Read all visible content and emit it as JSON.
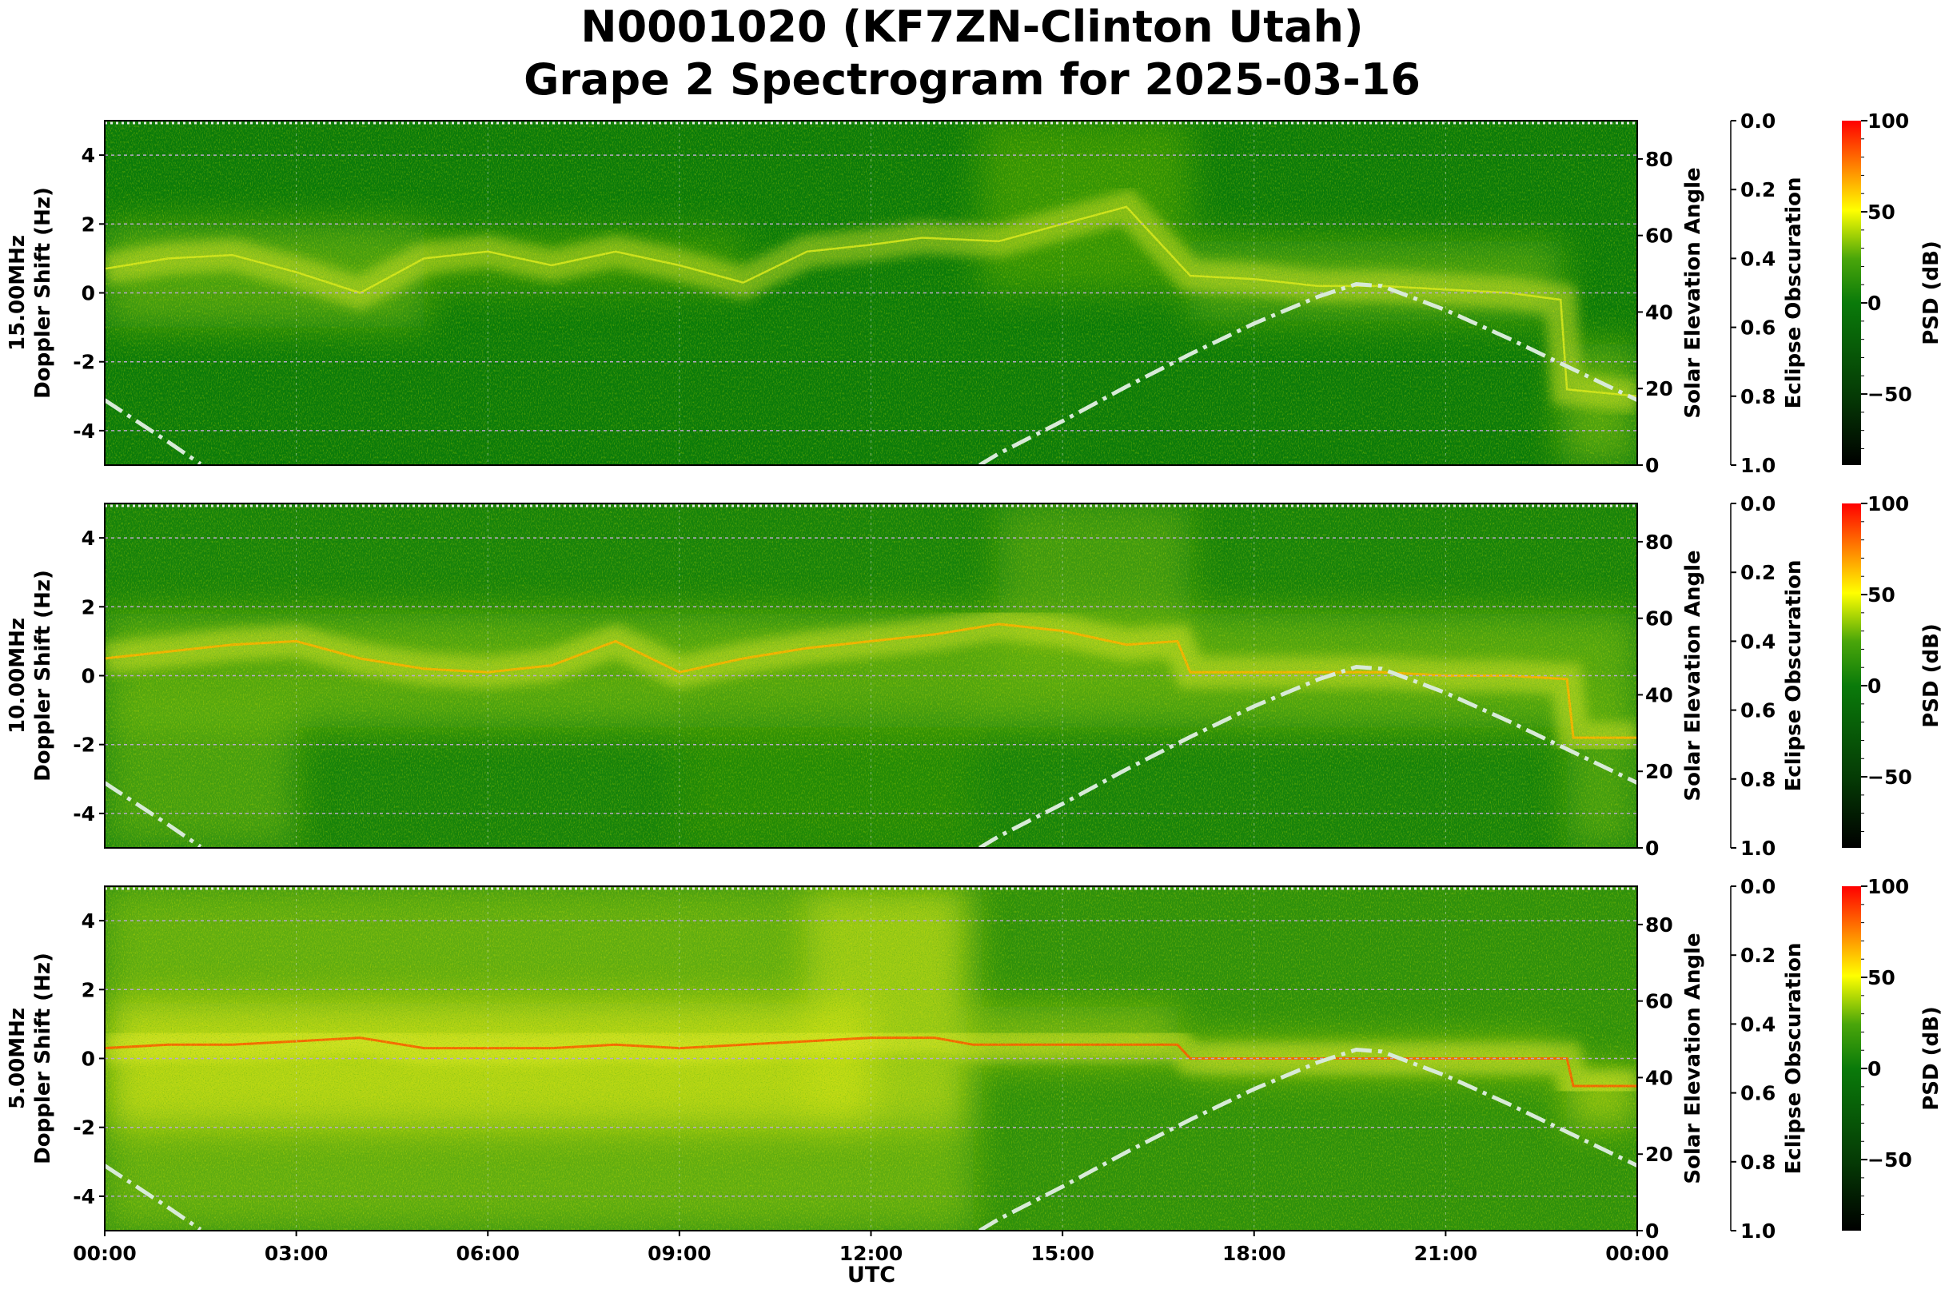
{
  "title_line1": "N0001020 (KF7ZN-Clinton Utah)",
  "title_line2": "Grape 2 Spectrogram for 2025-03-16",
  "chart_data": {
    "type": "heatmap",
    "xlabel": "UTC",
    "x_ticks": [
      "00:00",
      "03:00",
      "06:00",
      "09:00",
      "12:00",
      "15:00",
      "18:00",
      "21:00",
      "00:00"
    ],
    "x_range_hours": [
      0,
      24
    ],
    "grid": true,
    "panels": [
      {
        "frequency_label": "15.00MHz",
        "ylabel": "Doppler Shift (Hz)",
        "ylim": [
          -5,
          5
        ],
        "y_ticks": [
          "-4",
          "-2",
          "0",
          "2",
          "4"
        ],
        "dominant_doppler_hz": [
          [
            0,
            0.7
          ],
          [
            1,
            1.0
          ],
          [
            2,
            1.1
          ],
          [
            3,
            0.6
          ],
          [
            4,
            0.0
          ],
          [
            5,
            1.0
          ],
          [
            6,
            1.2
          ],
          [
            7,
            0.8
          ],
          [
            8,
            1.2
          ],
          [
            9,
            0.8
          ],
          [
            10,
            0.3
          ],
          [
            11,
            1.2
          ],
          [
            12,
            1.4
          ],
          [
            12.8,
            1.6
          ],
          [
            14,
            1.5
          ],
          [
            15,
            2.0
          ],
          [
            16,
            2.5
          ],
          [
            17,
            0.5
          ],
          [
            18,
            0.4
          ],
          [
            19,
            0.2
          ],
          [
            20,
            0.2
          ],
          [
            21,
            0.1
          ],
          [
            22,
            0.0
          ],
          [
            22.8,
            -0.2
          ],
          [
            22.9,
            -2.8
          ],
          [
            24,
            -3.0
          ]
        ]
      },
      {
        "frequency_label": "10.00MHz",
        "ylabel": "Doppler Shift (Hz)",
        "ylim": [
          -5,
          5
        ],
        "y_ticks": [
          "-4",
          "-2",
          "0",
          "2",
          "4"
        ],
        "dominant_doppler_hz": [
          [
            0,
            0.5
          ],
          [
            1,
            0.7
          ],
          [
            2,
            0.9
          ],
          [
            3,
            1.0
          ],
          [
            4,
            0.5
          ],
          [
            5,
            0.2
          ],
          [
            6,
            0.1
          ],
          [
            7,
            0.3
          ],
          [
            8,
            1.0
          ],
          [
            9,
            0.1
          ],
          [
            10,
            0.5
          ],
          [
            11,
            0.8
          ],
          [
            12,
            1.0
          ],
          [
            13,
            1.2
          ],
          [
            14,
            1.5
          ],
          [
            15,
            1.3
          ],
          [
            16,
            0.9
          ],
          [
            16.8,
            1.0
          ],
          [
            17,
            0.1
          ],
          [
            18,
            0.1
          ],
          [
            19,
            0.1
          ],
          [
            20,
            0.1
          ],
          [
            21,
            0.0
          ],
          [
            22,
            0.0
          ],
          [
            22.9,
            -0.1
          ],
          [
            23,
            -1.8
          ],
          [
            24,
            -1.8
          ]
        ]
      },
      {
        "frequency_label": "5.00MHz",
        "ylabel": "Doppler Shift (Hz)",
        "ylim": [
          -5,
          5
        ],
        "y_ticks": [
          "-4",
          "-2",
          "0",
          "2",
          "4"
        ],
        "dominant_doppler_hz": [
          [
            0,
            0.3
          ],
          [
            1,
            0.4
          ],
          [
            2,
            0.4
          ],
          [
            3,
            0.5
          ],
          [
            4,
            0.6
          ],
          [
            5,
            0.3
          ],
          [
            6,
            0.3
          ],
          [
            7,
            0.3
          ],
          [
            8,
            0.4
          ],
          [
            9,
            0.3
          ],
          [
            10,
            0.4
          ],
          [
            11,
            0.5
          ],
          [
            12,
            0.6
          ],
          [
            13,
            0.6
          ],
          [
            13.6,
            0.4
          ],
          [
            15,
            0.4
          ],
          [
            16.8,
            0.4
          ],
          [
            17,
            0.0
          ],
          [
            20,
            0.0
          ],
          [
            22.9,
            0.0
          ],
          [
            23,
            -0.8
          ],
          [
            24,
            -0.8
          ]
        ]
      }
    ],
    "solar_elevation": {
      "ylabel": "Solar Elevation Angle",
      "ylim": [
        0,
        90
      ],
      "y_ticks": [
        "0",
        "20",
        "40",
        "60",
        "80"
      ],
      "style": "dash-dot",
      "color": "#d8ead8",
      "points": [
        [
          0,
          17
        ],
        [
          0.5,
          11.5
        ],
        [
          1,
          6
        ],
        [
          1.5,
          0.3
        ],
        [
          13.7,
          0
        ],
        [
          14,
          3
        ],
        [
          15,
          11.5
        ],
        [
          16,
          20.5
        ],
        [
          17,
          29
        ],
        [
          18,
          37
        ],
        [
          19,
          44
        ],
        [
          19.6,
          47.3
        ],
        [
          20,
          46.8
        ],
        [
          21,
          40.5
        ],
        [
          22,
          33
        ],
        [
          23,
          25
        ],
        [
          24,
          17
        ]
      ]
    },
    "eclipse_obscuration": {
      "ylabel": "Eclipse Obscuration",
      "ylim": [
        1.0,
        0.0
      ],
      "y_ticks": [
        "0.0",
        "0.2",
        "0.4",
        "0.6",
        "0.8",
        "1.0"
      ]
    },
    "colorbar": {
      "label": "PSD (dB)",
      "range": [
        -89,
        100
      ],
      "ticks": [
        "−50",
        "0",
        "50",
        "100"
      ],
      "colors": [
        "#000000",
        "#0a6e0a",
        "#3a9a0a",
        "#ffff00",
        "#ff0000"
      ]
    }
  }
}
